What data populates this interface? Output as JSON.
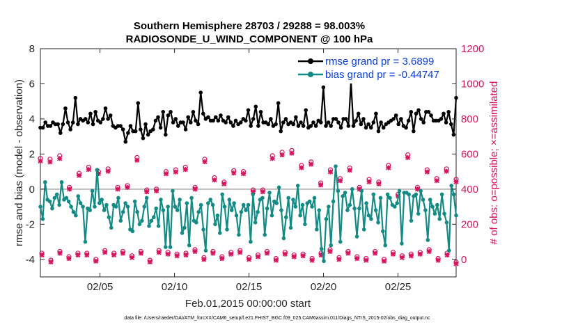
{
  "chart_data": {
    "type": "line",
    "title_line1": "Southern Hemisphere 28703 / 29288 = 98.003%",
    "title_line2": "RADIOSONDE_U_WIND_COMPONENT @ 100 hPa",
    "ylabel_left": "rmse and bias (model - observation)",
    "ylabel_right": "# of obs: o=possible; ×=assimilated",
    "xlabel": "Feb.01,2015 00:00:00 start",
    "footnote": "data file: /Users/raeder/DAI/ATM_forcXX/CAM6_setup/f.e21.FHIST_BGC.f09_025.CAM6assim.011/Diags_NTrS_2015-02/obs_diag_output.nc",
    "xlim": [
      1,
      28.9
    ],
    "ylim_left": [
      -5,
      8
    ],
    "ylim_right": [
      -100,
      1200
    ],
    "yticks_left": [
      -4,
      -2,
      0,
      2,
      4,
      6,
      8
    ],
    "yticks_right": [
      0,
      200,
      400,
      600,
      800,
      1000,
      1200
    ],
    "xticks": [
      5,
      10,
      15,
      20,
      25
    ],
    "xtick_labels": [
      "02/05",
      "02/10",
      "02/15",
      "02/20",
      "02/25"
    ],
    "colors": {
      "rmse": "#000000",
      "bias": "#148a84",
      "obs": "#d6115e",
      "zero": "#bdbdbd",
      "legend_text": "#0b3fd6"
    },
    "legend": [
      {
        "name": "rmse grand pr = 3.6899",
        "series": "rmse"
      },
      {
        "name": "bias grand pr = -0.44747",
        "series": "bias"
      }
    ],
    "rmse_values": [
      3.5,
      3.5,
      3.8,
      3.6,
      3.6,
      3.8,
      3.7,
      3.7,
      3.2,
      3.7,
      4.6,
      3.8,
      3.4,
      3.8,
      5.2,
      3.7,
      4.0,
      3.9,
      4.0,
      3.8,
      4.3,
      3.7,
      4.4,
      3.9,
      3.8,
      4.0,
      4.6,
      4.0,
      4.2,
      3.6,
      3.5,
      3.6,
      3.6,
      3.4,
      2.7,
      3.2,
      3.6,
      3.3,
      3.3,
      4.9,
      3.4,
      2.9,
      3.7,
      3.1,
      3.3,
      3.4,
      3.9,
      4.1,
      3.5,
      4.4,
      3.1,
      4.2,
      4.4,
      3.8,
      4.0,
      3.6,
      3.8,
      3.8,
      3.4,
      4.1,
      3.8,
      4.4,
      3.9,
      3.7,
      5.5,
      4.3,
      4.0,
      4.1,
      3.9,
      3.9,
      4.1,
      3.9,
      4.2,
      3.9,
      3.8,
      4.1,
      3.8,
      3.6,
      3.9,
      3.7,
      3.8,
      4.0,
      3.9,
      4.5,
      3.6,
      4.0,
      4.7,
      3.6,
      4.4,
      3.8,
      3.8,
      3.7,
      4.0,
      3.6,
      3.7,
      4.9,
      3.3,
      3.8,
      4.0,
      3.7,
      3.8,
      3.7,
      4.1,
      3.6,
      3.8,
      3.6,
      4.5,
      3.5,
      3.6,
      3.8,
      3.6,
      3.9,
      3.8,
      5.8,
      3.6,
      3.8,
      3.6,
      4.0,
      4.0,
      3.8,
      3.5,
      4.0,
      4.0,
      3.6,
      6.1,
      3.6,
      3.9,
      4.3,
      3.7,
      4.0,
      3.5,
      3.7,
      3.5,
      3.8,
      4.3,
      3.3,
      3.8,
      3.5,
      3.7,
      3.8,
      3.9,
      4.0,
      4.2,
      3.7,
      4.0,
      3.6,
      3.5,
      3.9,
      4.4,
      3.3,
      4.3,
      4.5,
      4.0,
      3.8,
      4.4,
      4.4,
      4.2,
      3.9,
      3.9,
      3.9,
      4.0,
      4.3,
      3.8,
      4.4,
      3.7,
      3.1,
      5.2
    ],
    "bias_values": [
      -1.0,
      -1.7,
      0.4,
      -0.6,
      -0.7,
      -1.1,
      -0.5,
      -0.3,
      -0.9,
      0.4,
      -0.6,
      -0.5,
      -0.7,
      -1.0,
      -1.3,
      -1.5,
      -0.4,
      -0.8,
      -1.0,
      -3.0,
      -1.1,
      -1.2,
      -0.1,
      -1.0,
      1.1,
      -0.8,
      -0.6,
      -1.2,
      -0.9,
      -1.6,
      -2.2,
      -0.9,
      -1.0,
      -0.5,
      -1.8,
      -1.3,
      -0.8,
      -1.0,
      -2.3,
      -2.4,
      -0.7,
      -1.3,
      -2.0,
      -1.8,
      -1.0,
      -0.5,
      -2.1,
      -1.8,
      -1.6,
      -1.1,
      -2.1,
      -0.6,
      -1.2,
      -3.3,
      -1.0,
      -3.3,
      -0.1,
      -1.0,
      -1.2,
      -0.6,
      -2.5,
      -2.2,
      -0.8,
      -3.2,
      -0.5,
      -1.8,
      -1.9,
      -1.3,
      -0.9,
      -2.3,
      -3.5,
      -0.8,
      -0.6,
      -0.9,
      -2.0,
      -1.5,
      -2.5,
      -0.3,
      -1.0,
      -2.3,
      -0.6,
      -1.2,
      -0.8,
      -1.5,
      -2.6,
      -1.3,
      -0.9,
      -1.2,
      -0.9,
      -3.0,
      -0.3,
      -1.9,
      -1.3,
      -0.6,
      -0.5,
      -2.6,
      -1.1,
      -0.2,
      -1.5,
      -0.7,
      -0.8,
      0.1,
      -1.2,
      -2.8,
      -1.6,
      -0.5,
      -2.2,
      -0.6,
      -1.0,
      0.2,
      -1.5,
      -0.9,
      -2.0,
      -0.8,
      -0.7,
      -1.0,
      -0.5,
      -2.3,
      -1.2,
      -3.4,
      -4.1,
      -1.7,
      -1.0,
      -3.2,
      -0.7,
      1.3,
      -0.1,
      -3.0,
      -0.4,
      -0.2,
      -1.2,
      -0.9,
      0.0,
      -1.1,
      -2.7,
      -1.1,
      -0.1,
      -2.3,
      -0.8,
      -1.5,
      -1.7,
      -0.3,
      -1.2,
      -1.9,
      -0.5,
      -2.4,
      -3.2,
      -0.3,
      -0.5,
      -0.9,
      -1.0,
      -0.8,
      -0.1,
      -3.1,
      -0.2,
      -0.2,
      -0.3,
      -1.8,
      -0.4,
      -0.3,
      -1.4,
      -0.1,
      -0.6,
      -1.2,
      -2.9,
      -0.6,
      -1.0,
      -1.4,
      -0.9,
      -1.7,
      -0.3,
      -1.4,
      -1.9,
      -3.5,
      0.2,
      -0.3,
      -1.5
    ],
    "obs_possible_00z": [
      575,
      570,
      590,
      410,
      490,
      525,
      500,
      515,
      410,
      420,
      580,
      395,
      400,
      500,
      510,
      525,
      410,
      570,
      465,
      440,
      505,
      500,
      395,
      395,
      590,
      610,
      620,
      535,
      555,
      435,
      510,
      460,
      520,
      410,
      455,
      440,
      535,
      370,
      595,
      410,
      510,
      460,
      515,
      455
    ],
    "obs_assimilated_00z": [
      560,
      555,
      575,
      400,
      478,
      512,
      488,
      502,
      400,
      410,
      565,
      385,
      390,
      488,
      498,
      512,
      400,
      556,
      452,
      430,
      492,
      488,
      385,
      385,
      575,
      595,
      605,
      522,
      542,
      424,
      498,
      448,
      508,
      400,
      442,
      430,
      522,
      360,
      580,
      400,
      498,
      448,
      502,
      442
    ],
    "obs_possible_12z": [
      35,
      -5,
      45,
      15,
      35,
      35,
      0,
      50,
      35,
      45,
      20,
      45,
      -5,
      50,
      40,
      30,
      35,
      55,
      10,
      45,
      15,
      40,
      50,
      10,
      25,
      45,
      5,
      40,
      25,
      30,
      5,
      35,
      55,
      10,
      45,
      15,
      5,
      45,
      0,
      40,
      20,
      30,
      40,
      55,
      5,
      35,
      -15
    ],
    "obs_assimilated_12z": [
      25,
      -15,
      35,
      5,
      25,
      25,
      -10,
      40,
      25,
      35,
      10,
      35,
      -15,
      40,
      30,
      20,
      25,
      45,
      0,
      35,
      5,
      30,
      40,
      0,
      15,
      35,
      -5,
      30,
      15,
      20,
      -5,
      25,
      45,
      0,
      35,
      5,
      -5,
      35,
      -10,
      30,
      10,
      20,
      30,
      45,
      -5,
      25,
      -25
    ]
  }
}
